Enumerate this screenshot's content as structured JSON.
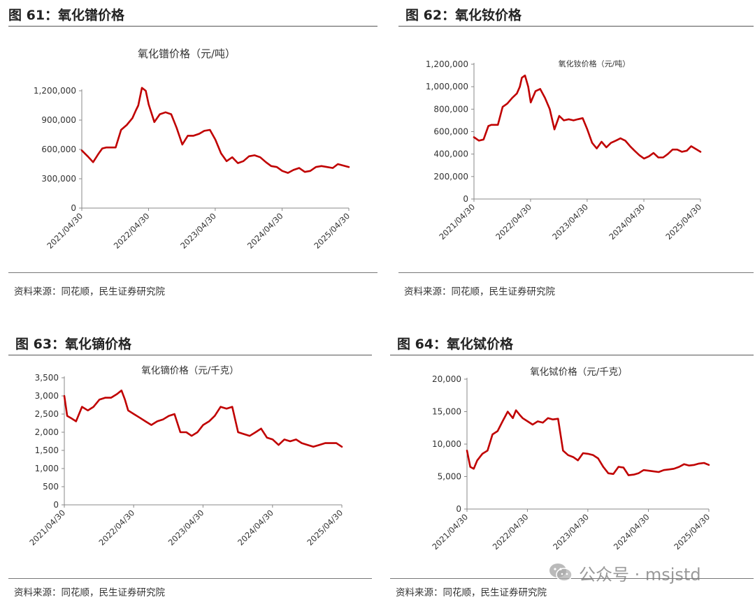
{
  "panels": [
    {
      "figure_title": "图 61：氧化镨价格",
      "source": "资料来源：同花顺，民生证券研究院",
      "chart_data": {
        "type": "line",
        "title": "氧化镨价格（元/吨）",
        "xlabel": "",
        "ylabel": "",
        "ylim": [
          0,
          1200000
        ],
        "yticks": [
          0,
          300000,
          600000,
          900000,
          1200000
        ],
        "ytick_labels": [
          "0",
          "300,000",
          "600,000",
          "900,000",
          "1,200,000"
        ],
        "xlim": [
          "2021/04/30",
          "2025/04/30"
        ],
        "xticks": [
          "2021/04/30",
          "2022/04/30",
          "2023/04/30",
          "2024/04/30",
          "2025/04/30"
        ],
        "grid": false,
        "legend": "none",
        "color": "#c00000",
        "series": [
          {
            "x": [
              "2021/04/30",
              "2021/06/01",
              "2021/07/01",
              "2021/08/01",
              "2021/08/20",
              "2021/09/10",
              "2021/10/01",
              "2021/11/01",
              "2021/12/01",
              "2022/01/01",
              "2022/02/01",
              "2022/02/20",
              "2022/03/05",
              "2022/03/25",
              "2022/04/15",
              "2022/05/01",
              "2022/06/01",
              "2022/07/01",
              "2022/08/01",
              "2022/09/01",
              "2022/10/01",
              "2022/11/01",
              "2022/12/01",
              "2023/01/01",
              "2023/02/01",
              "2023/03/01",
              "2023/04/01",
              "2023/05/01",
              "2023/06/01",
              "2023/07/01",
              "2023/08/01",
              "2023/09/01",
              "2023/10/01",
              "2023/11/01",
              "2023/12/01",
              "2024/01/01",
              "2024/02/01",
              "2024/03/01",
              "2024/04/01",
              "2024/05/01",
              "2024/06/01",
              "2024/07/01",
              "2024/08/01",
              "2024/09/01",
              "2024/10/01",
              "2024/11/01",
              "2024/12/01",
              "2025/01/01",
              "2025/02/01",
              "2025/03/01",
              "2025/04/30"
            ],
            "y": [
              590000,
              530000,
              470000,
              560000,
              610000,
              620000,
              620000,
              620000,
              800000,
              850000,
              920000,
              1000000,
              1050000,
              1230000,
              1200000,
              1060000,
              880000,
              960000,
              980000,
              960000,
              820000,
              650000,
              740000,
              740000,
              760000,
              790000,
              800000,
              700000,
              560000,
              480000,
              520000,
              460000,
              480000,
              530000,
              540000,
              520000,
              470000,
              430000,
              420000,
              380000,
              360000,
              390000,
              410000,
              370000,
              380000,
              420000,
              430000,
              420000,
              410000,
              450000,
              420000
            ]
          }
        ]
      }
    },
    {
      "figure_title": "图 62：氧化钕价格",
      "source": "资料来源：同花顺，民生证券研究院",
      "chart_data": {
        "type": "line",
        "title": "氧化钕价格（元/吨）",
        "xlabel": "",
        "ylabel": "",
        "ylim": [
          0,
          1200000
        ],
        "yticks": [
          0,
          200000,
          400000,
          600000,
          800000,
          1000000,
          1200000
        ],
        "ytick_labels": [
          "0",
          "200,000",
          "400,000",
          "600,000",
          "800,000",
          "1,000,000",
          "1,200,000"
        ],
        "xlim": [
          "2021/04/30",
          "2025/04/30"
        ],
        "xticks": [
          "2021/04/30",
          "2022/04/30",
          "2023/04/30",
          "2024/04/30",
          "2025/04/30"
        ],
        "grid": false,
        "legend": "none",
        "color": "#c00000",
        "series": [
          {
            "x": [
              "2021/04/30",
              "2021/06/01",
              "2021/07/01",
              "2021/08/01",
              "2021/08/20",
              "2021/09/10",
              "2021/10/01",
              "2021/11/01",
              "2021/12/01",
              "2022/01/01",
              "2022/02/01",
              "2022/02/20",
              "2022/03/05",
              "2022/03/25",
              "2022/04/15",
              "2022/05/01",
              "2022/06/01",
              "2022/07/01",
              "2022/08/01",
              "2022/09/01",
              "2022/10/01",
              "2022/11/01",
              "2022/12/01",
              "2023/01/01",
              "2023/02/01",
              "2023/03/01",
              "2023/04/01",
              "2023/05/01",
              "2023/06/01",
              "2023/07/01",
              "2023/08/01",
              "2023/09/01",
              "2023/10/01",
              "2023/11/01",
              "2023/12/01",
              "2024/01/01",
              "2024/02/01",
              "2024/03/01",
              "2024/04/01",
              "2024/05/01",
              "2024/06/01",
              "2024/07/01",
              "2024/08/01",
              "2024/09/01",
              "2024/10/01",
              "2024/11/01",
              "2024/12/01",
              "2025/01/01",
              "2025/02/01",
              "2025/03/01",
              "2025/04/30"
            ],
            "y": [
              550000,
              520000,
              530000,
              650000,
              660000,
              660000,
              660000,
              820000,
              850000,
              900000,
              940000,
              1000000,
              1080000,
              1100000,
              1000000,
              860000,
              960000,
              980000,
              900000,
              800000,
              620000,
              740000,
              700000,
              710000,
              700000,
              710000,
              720000,
              620000,
              500000,
              450000,
              510000,
              460000,
              500000,
              520000,
              540000,
              520000,
              470000,
              430000,
              390000,
              360000,
              380000,
              410000,
              370000,
              370000,
              400000,
              440000,
              440000,
              420000,
              430000,
              470000,
              420000
            ]
          }
        ]
      }
    },
    {
      "figure_title": "图 63：氧化镝价格",
      "source": "资料来源：同花顺，民生证券研究院",
      "chart_data": {
        "type": "line",
        "title": "氧化镝价格（元/千克）",
        "xlabel": "",
        "ylabel": "",
        "ylim": [
          0,
          3500
        ],
        "yticks": [
          0,
          500,
          1000,
          1500,
          2000,
          2500,
          3000,
          3500
        ],
        "ytick_labels": [
          "0",
          "500",
          "1,000",
          "1,500",
          "2,000",
          "2,500",
          "3,000",
          "3,500"
        ],
        "xlim": [
          "2021/04/30",
          "2025/04/30"
        ],
        "xticks": [
          "2021/04/30",
          "2022/04/30",
          "2023/04/30",
          "2024/04/30",
          "2025/04/30"
        ],
        "grid": false,
        "legend": "none",
        "color": "#c00000",
        "series": [
          {
            "x": [
              "2021/04/30",
              "2021/05/15",
              "2021/06/01",
              "2021/07/01",
              "2021/08/01",
              "2021/09/01",
              "2021/10/01",
              "2021/11/01",
              "2021/12/01",
              "2022/01/01",
              "2022/02/01",
              "2022/02/25",
              "2022/03/15",
              "2022/04/01",
              "2022/05/01",
              "2022/06/01",
              "2022/07/01",
              "2022/08/01",
              "2022/09/01",
              "2022/10/01",
              "2022/11/01",
              "2022/12/01",
              "2023/01/01",
              "2023/02/01",
              "2023/03/01",
              "2023/04/01",
              "2023/05/01",
              "2023/06/01",
              "2023/07/01",
              "2023/08/01",
              "2023/09/01",
              "2023/10/01",
              "2023/11/01",
              "2023/12/01",
              "2024/01/01",
              "2024/02/01",
              "2024/03/01",
              "2024/04/01",
              "2024/05/01",
              "2024/06/01",
              "2024/07/01",
              "2024/08/01",
              "2024/09/01",
              "2024/10/01",
              "2024/11/01",
              "2024/12/01",
              "2025/01/01",
              "2025/02/01",
              "2025/03/01",
              "2025/04/01",
              "2025/04/30"
            ],
            "y": [
              3000,
              2450,
              2400,
              2300,
              2700,
              2600,
              2700,
              2900,
              2950,
              2950,
              3050,
              3150,
              2900,
              2600,
              2500,
              2400,
              2300,
              2200,
              2300,
              2350,
              2450,
              2500,
              2000,
              2000,
              1900,
              2000,
              2200,
              2300,
              2450,
              2700,
              2650,
              2700,
              2000,
              1950,
              1900,
              2000,
              2100,
              1850,
              1800,
              1650,
              1800,
              1750,
              1800,
              1700,
              1650,
              1600,
              1650,
              1700,
              1700,
              1700,
              1600
            ]
          }
        ]
      }
    },
    {
      "figure_title": "图 64：氧化铽价格",
      "source": "资料来源：同花顺，民生证券研究院",
      "chart_data": {
        "type": "line",
        "title": "氧化铽价格（元/千克）",
        "xlabel": "",
        "ylabel": "",
        "ylim": [
          0,
          20000
        ],
        "yticks": [
          0,
          5000,
          10000,
          15000,
          20000
        ],
        "ytick_labels": [
          "0",
          "5,000",
          "10,000",
          "15,000",
          "20,000"
        ],
        "xlim": [
          "2021/04/30",
          "2025/04/30"
        ],
        "xticks": [
          "2021/04/30",
          "2022/04/30",
          "2023/04/30",
          "2024/04/30",
          "2025/04/30"
        ],
        "grid": false,
        "legend": "none",
        "color": "#c00000",
        "series": [
          {
            "x": [
              "2021/04/30",
              "2021/05/20",
              "2021/06/10",
              "2021/07/01",
              "2021/08/01",
              "2021/09/01",
              "2021/10/01",
              "2021/11/01",
              "2021/12/01",
              "2022/01/01",
              "2022/02/01",
              "2022/02/20",
              "2022/03/15",
              "2022/04/01",
              "2022/05/01",
              "2022/06/01",
              "2022/07/01",
              "2022/08/01",
              "2022/09/01",
              "2022/10/01",
              "2022/11/01",
              "2022/12/01",
              "2023/01/01",
              "2023/02/01",
              "2023/03/01",
              "2023/04/01",
              "2023/05/01",
              "2023/06/01",
              "2023/07/01",
              "2023/08/01",
              "2023/09/01",
              "2023/10/01",
              "2023/11/01",
              "2023/12/01",
              "2024/01/01",
              "2024/02/01",
              "2024/03/01",
              "2024/04/01",
              "2024/05/01",
              "2024/06/01",
              "2024/07/01",
              "2024/08/01",
              "2024/09/01",
              "2024/10/01",
              "2024/11/01",
              "2024/12/01",
              "2025/01/01",
              "2025/02/01",
              "2025/03/01",
              "2025/04/01",
              "2025/04/30"
            ],
            "y": [
              9000,
              6500,
              6200,
              7500,
              8500,
              9000,
              11500,
              12000,
              13500,
              15000,
              14000,
              15200,
              14500,
              14000,
              13500,
              13000,
              13500,
              13300,
              14000,
              13800,
              13900,
              9000,
              8300,
              8000,
              7500,
              8600,
              8500,
              8300,
              7800,
              6500,
              5500,
              5400,
              6500,
              6400,
              5200,
              5300,
              5500,
              6000,
              5900,
              5800,
              5700,
              6000,
              6100,
              6200,
              6500,
              6900,
              6700,
              6800,
              7000,
              7100,
              6800
            ]
          }
        ]
      }
    }
  ],
  "watermark": {
    "icon": "wechat-icon",
    "text": "公众号 · msjstd"
  }
}
